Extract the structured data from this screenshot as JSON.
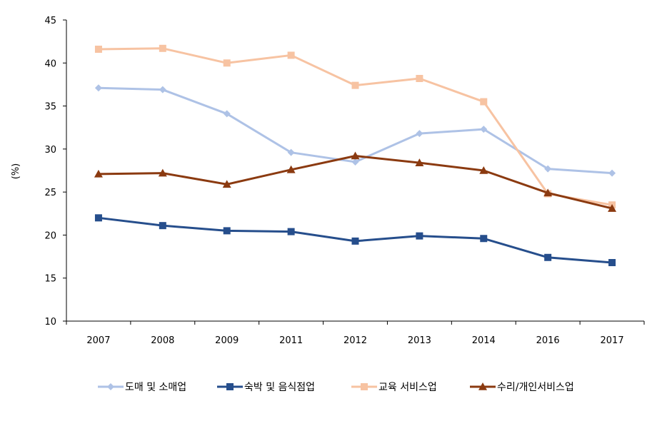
{
  "chart_data": {
    "type": "line",
    "title": "",
    "xlabel": "",
    "ylabel": "(%)",
    "categories": [
      "2007",
      "2008",
      "2009",
      "2011",
      "2012",
      "2013",
      "2014",
      "2016",
      "2017"
    ],
    "ylim": [
      10,
      45
    ],
    "yticks": [
      10,
      15,
      20,
      25,
      30,
      35,
      40,
      45
    ],
    "grid": false,
    "legend_position": "bottom",
    "series": [
      {
        "name": "도매 및 소매업",
        "color": "#aec2e6",
        "marker": "diamond",
        "values": [
          37.1,
          36.9,
          34.1,
          29.6,
          28.5,
          31.8,
          32.3,
          27.7,
          27.2
        ]
      },
      {
        "name": "숙박 및 음식점업",
        "color": "#264e8c",
        "marker": "square",
        "values": [
          22.0,
          21.1,
          20.5,
          20.4,
          19.3,
          19.9,
          19.6,
          17.4,
          16.8
        ]
      },
      {
        "name": "교육 서비스업",
        "color": "#f7c3a2",
        "marker": "square",
        "values": [
          41.6,
          41.7,
          40.0,
          40.9,
          37.4,
          38.2,
          35.5,
          24.8,
          23.5
        ]
      },
      {
        "name": "수리/개인서비스업",
        "color": "#8b3a10",
        "marker": "triangle",
        "values": [
          27.1,
          27.2,
          25.9,
          27.6,
          29.2,
          28.4,
          27.5,
          24.9,
          23.1
        ]
      }
    ]
  }
}
